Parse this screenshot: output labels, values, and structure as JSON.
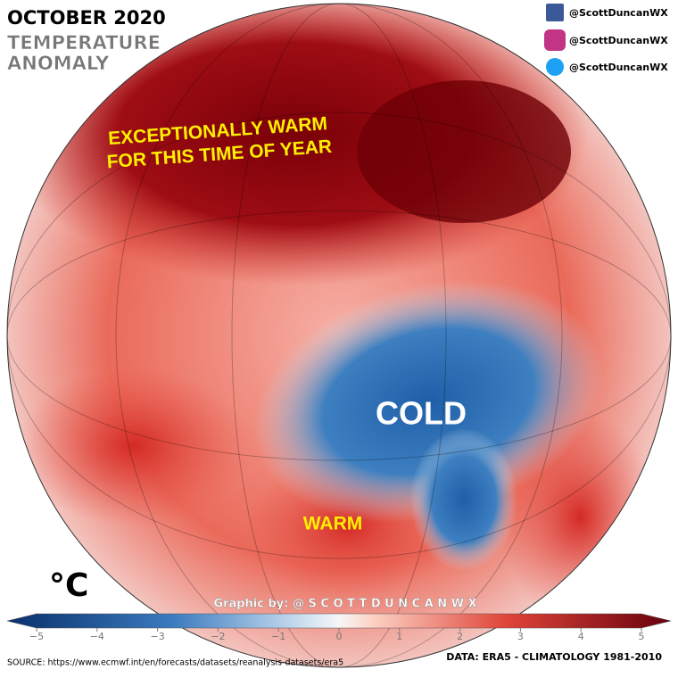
{
  "header": {
    "title": "OCTOBER 2020",
    "subtitle_lines": [
      "TEMPERATURE",
      "ANOMALY"
    ]
  },
  "social": [
    "@ScottDuncanWX",
    "@ScottDuncanWX",
    "@ScottDuncanWX"
  ],
  "annotations": {
    "warm_north": [
      "EXCEPTIONALLY WARM",
      "FOR THIS TIME OF YEAR"
    ],
    "cold": "COLD",
    "warm_south": "WARM"
  },
  "colorbar": {
    "unit": "°C",
    "range": [
      -5,
      5
    ],
    "ticks": [
      {
        "value": -5,
        "label": "−5"
      },
      {
        "value": -4,
        "label": "−4"
      },
      {
        "value": -3,
        "label": "−3"
      },
      {
        "value": -2,
        "label": "−2"
      },
      {
        "value": -1,
        "label": "−1"
      },
      0,
      1,
      2,
      3,
      4,
      5
    ]
  },
  "credit": "Graphic by: @ S C O T T D U N C A N W X",
  "footer": {
    "source": "SOURCE: https://www.ecmwf.int/en/forecasts/datasets/reanalysis-datasets/era5",
    "data": "DATA: ERA5 - CLIMATOLOGY 1981-2010"
  }
}
